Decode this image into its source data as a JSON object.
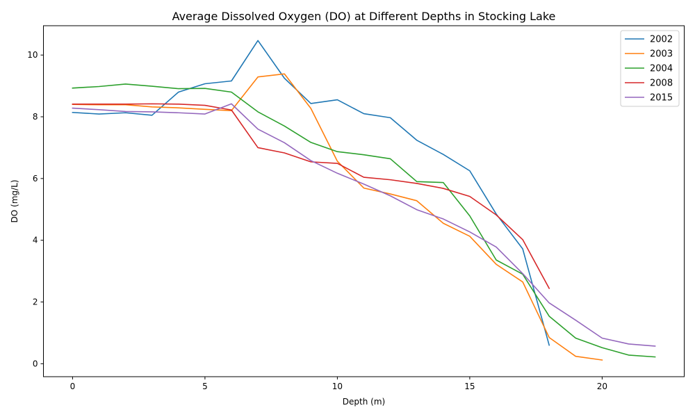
{
  "chart_data": {
    "type": "line",
    "title": "Average Dissolved Oxygen (DO) at Different Depths in Stocking Lake",
    "xlabel": "Depth (m)",
    "ylabel": "DO (mg/L)",
    "xlim": [
      -1.1,
      23.1
    ],
    "ylim": [
      -0.42,
      10.95
    ],
    "xticks": [
      0,
      5,
      10,
      15,
      20
    ],
    "yticks": [
      0,
      2,
      4,
      6,
      8,
      10
    ],
    "grid": false,
    "legend_position": "top-right",
    "series": [
      {
        "name": "2002",
        "color": "#1f77b4",
        "x": [
          0,
          1,
          2,
          3,
          4,
          5,
          6,
          7,
          8,
          9,
          10,
          11,
          12,
          13,
          14,
          15,
          16,
          17,
          18
        ],
        "y": [
          8.14,
          8.09,
          8.13,
          8.05,
          8.8,
          9.07,
          9.16,
          10.47,
          9.25,
          8.43,
          8.55,
          8.1,
          7.97,
          7.24,
          6.78,
          6.25,
          4.85,
          3.72,
          0.6
        ]
      },
      {
        "name": "2003",
        "color": "#ff7f0e",
        "x": [
          0,
          1,
          2,
          3,
          4,
          5,
          6,
          7,
          8,
          9,
          10,
          11,
          12,
          13,
          14,
          15,
          16,
          17,
          18,
          19,
          20
        ],
        "y": [
          8.4,
          8.39,
          8.39,
          8.32,
          8.29,
          8.24,
          8.2,
          9.29,
          9.39,
          8.27,
          6.56,
          5.69,
          5.5,
          5.28,
          4.55,
          4.13,
          3.22,
          2.65,
          0.85,
          0.24,
          0.12
        ]
      },
      {
        "name": "2004",
        "color": "#2ca02c",
        "x": [
          0,
          1,
          2,
          3,
          4,
          5,
          6,
          7,
          8,
          9,
          10,
          11,
          12,
          13,
          14,
          15,
          16,
          17,
          18,
          19,
          20,
          21,
          22
        ],
        "y": [
          8.93,
          8.98,
          9.06,
          8.99,
          8.91,
          8.92,
          8.8,
          8.16,
          7.7,
          7.17,
          6.87,
          6.77,
          6.64,
          5.9,
          5.87,
          4.79,
          3.36,
          2.9,
          1.54,
          0.83,
          0.52,
          0.28,
          0.22
        ]
      },
      {
        "name": "2008",
        "color": "#d62728",
        "x": [
          0,
          1,
          2,
          3,
          4,
          5,
          6,
          7,
          8,
          9,
          10,
          11,
          12,
          13,
          14,
          15,
          16,
          17,
          18
        ],
        "y": [
          8.41,
          8.41,
          8.41,
          8.42,
          8.41,
          8.37,
          8.22,
          7.0,
          6.83,
          6.54,
          6.49,
          6.04,
          5.96,
          5.84,
          5.68,
          5.42,
          4.82,
          4.02,
          2.44
        ]
      },
      {
        "name": "2015",
        "color": "#9467bd",
        "x": [
          0,
          1,
          2,
          3,
          4,
          5,
          6,
          7,
          8,
          9,
          10,
          11,
          12,
          13,
          14,
          15,
          16,
          17,
          18,
          19,
          20,
          21,
          22
        ],
        "y": [
          8.28,
          8.23,
          8.17,
          8.16,
          8.13,
          8.09,
          8.42,
          7.6,
          7.16,
          6.58,
          6.17,
          5.82,
          5.44,
          4.99,
          4.69,
          4.27,
          3.78,
          2.92,
          1.97,
          1.41,
          0.83,
          0.64,
          0.57
        ]
      }
    ]
  }
}
